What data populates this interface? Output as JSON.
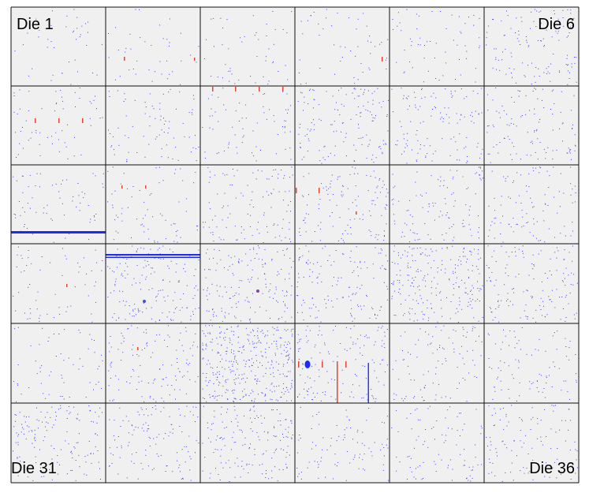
{
  "die_labels": [
    "Die 1",
    "Die 6",
    "Die 31",
    "Die 36"
  ]
}
